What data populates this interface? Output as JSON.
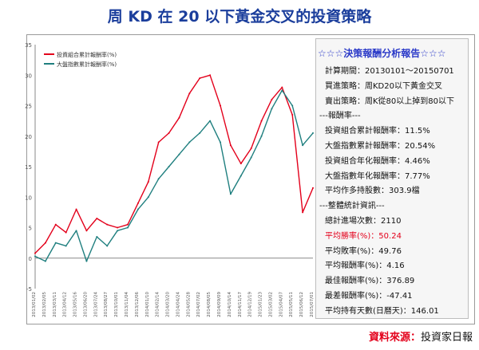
{
  "page": {
    "title": "周 KD 在 20 以下黃金交叉的投資策略"
  },
  "panel": {
    "header": "☆☆☆決策報酬分析報告☆☆☆",
    "rows": [
      "計算期間：20130101～20150701",
      "買進策略：周KD20以下黃金交叉",
      "賣出策略：周K從80以上掉到80以下",
      "---報酬率---",
      "投資組合累計報酬率：11.5%",
      "大盤指數累計報酬率：20.54%",
      "投資組合年化報酬率：4.46%",
      "大盤指數年化報酬率：7.77%",
      "平均作多持股數：303.9檔",
      "---整體統計資訊---",
      "總計進場次數：2110",
      "平均勝率(%)：50.24",
      "平均敗率(%)：49.76",
      "平均報酬率(%)：4.16",
      "最佳報酬率(%)：376.89",
      "最差報酬率(%)：-47.41",
      "平均持有天數(日曆天)：146.01"
    ],
    "highlight_color": "#e3001b"
  },
  "source": {
    "label": "資料來源：",
    "value": "投資家日報"
  },
  "colors": {
    "portfolio": "#e3001b",
    "index": "#1f7f7f",
    "title": "#1b3e9c"
  },
  "chart_data": {
    "type": "line",
    "title": "",
    "xlabel": "",
    "ylabel": "",
    "ylim": [
      -5,
      35
    ],
    "yticks": [
      -5,
      0,
      5,
      10,
      15,
      20,
      25,
      30,
      35
    ],
    "grid": false,
    "legend": "top-left",
    "x": [
      "2013/01/02",
      "2013/02/05",
      "2013/03/11",
      "2013/04/12",
      "2013/05/16",
      "2013/06/20",
      "2013/07/24",
      "2013/08/27",
      "2013/10/01",
      "2013/11/04",
      "2013/12/06",
      "2014/01/10",
      "2014/02/14",
      "2014/03/20",
      "2014/04/24",
      "2014/05/28",
      "2014/07/02",
      "2014/08/05",
      "2014/09/09",
      "2014/10/14",
      "2014/11/17",
      "2014/12/19",
      "2015/01/23",
      "2015/03/02",
      "2015/04/07",
      "2015/05/11",
      "2015/06/12",
      "2015/07/01"
    ],
    "series": [
      {
        "name": "投資組合累計報酬率(%)",
        "values": [
          0.8,
          2.5,
          5.5,
          4.2,
          8.0,
          4.5,
          6.5,
          5.5,
          5.0,
          5.5,
          9.0,
          12.5,
          19.0,
          20.5,
          23.0,
          27.0,
          29.5,
          30.0,
          25.0,
          18.5,
          15.5,
          18.0,
          22.5,
          26.0,
          28.0,
          23.5,
          7.5,
          11.5
        ]
      },
      {
        "name": "大盤指數累計報酬率(%)",
        "values": [
          0.3,
          -0.5,
          2.5,
          2.0,
          4.5,
          -0.5,
          3.5,
          2.0,
          4.5,
          5.0,
          8.0,
          10.0,
          13.0,
          15.0,
          17.0,
          19.0,
          20.5,
          22.5,
          19.0,
          10.5,
          13.5,
          16.5,
          20.0,
          24.5,
          27.5,
          25.0,
          18.5,
          20.5
        ]
      }
    ]
  }
}
